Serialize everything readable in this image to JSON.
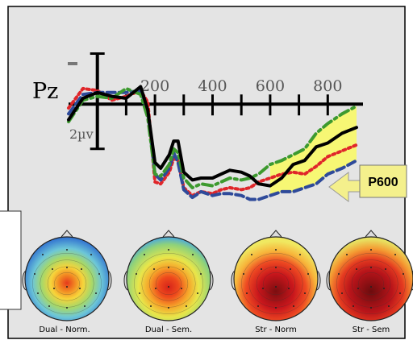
{
  "chart_data": {
    "type": "line",
    "channel_label": "Pz",
    "x_ticks": [
      200,
      400,
      600,
      800
    ],
    "xlim": [
      -100,
      900
    ],
    "ylim": [
      -5.5,
      3.2
    ],
    "scale_label": "2µv",
    "callout_label": "P600",
    "colors": {
      "black": "#000000",
      "green": "#3d9a2f",
      "red": "#e0262a",
      "blue": "#2e4a9a",
      "highlight": "#fafa60",
      "callout": "#f4f08c",
      "background": "#e4e4e4"
    },
    "series": [
      {
        "color": "black",
        "dash": "solid",
        "x": [
          -100,
          -50,
          0,
          50,
          100,
          150,
          175,
          200,
          220,
          250,
          265,
          280,
          300,
          330,
          360,
          400,
          430,
          460,
          500,
          530,
          560,
          600,
          640,
          680,
          720,
          760,
          800,
          850,
          900
        ],
        "y": [
          -0.8,
          0.3,
          0.6,
          0.4,
          0.3,
          0.9,
          -0.3,
          -3.0,
          -3.3,
          -2.6,
          -1.9,
          -1.9,
          -3.5,
          -3.9,
          -3.8,
          -3.8,
          -3.6,
          -3.4,
          -3.5,
          -3.7,
          -4.1,
          -4.2,
          -3.8,
          -3.1,
          -2.9,
          -2.2,
          -2.0,
          -1.5,
          -1.2
        ]
      },
      {
        "color": "green",
        "dash": "dash-dot",
        "x": [
          -100,
          -50,
          0,
          50,
          100,
          150,
          175,
          200,
          220,
          250,
          265,
          280,
          300,
          330,
          360,
          400,
          430,
          460,
          500,
          530,
          560,
          600,
          640,
          680,
          720,
          760,
          800,
          850,
          900
        ],
        "y": [
          -0.9,
          0.2,
          0.4,
          0.3,
          0.8,
          0.5,
          -0.7,
          -3.6,
          -3.7,
          -3.1,
          -2.3,
          -2.5,
          -3.8,
          -4.3,
          -4.1,
          -4.2,
          -4.0,
          -3.8,
          -3.9,
          -3.8,
          -3.6,
          -3.1,
          -2.9,
          -2.6,
          -2.3,
          -1.5,
          -1.0,
          -0.5,
          -0.1
        ]
      },
      {
        "color": "red",
        "dash": "dotted",
        "x": [
          -100,
          -50,
          0,
          50,
          100,
          150,
          175,
          200,
          220,
          250,
          265,
          280,
          300,
          330,
          360,
          400,
          430,
          460,
          500,
          530,
          560,
          600,
          640,
          680,
          720,
          760,
          800,
          850,
          900
        ],
        "y": [
          -0.2,
          0.8,
          0.7,
          0.2,
          0.4,
          0.7,
          0.1,
          -4.0,
          -4.1,
          -3.5,
          -2.8,
          -2.9,
          -4.3,
          -4.7,
          -4.5,
          -4.6,
          -4.4,
          -4.3,
          -4.4,
          -4.3,
          -4.0,
          -3.8,
          -3.6,
          -3.5,
          -3.6,
          -3.2,
          -2.7,
          -2.4,
          -2.1
        ]
      },
      {
        "color": "blue",
        "dash": "dashed",
        "x": [
          -100,
          -50,
          0,
          50,
          100,
          150,
          175,
          200,
          220,
          250,
          265,
          280,
          300,
          330,
          360,
          400,
          430,
          460,
          500,
          530,
          560,
          600,
          640,
          680,
          720,
          760,
          800,
          850,
          900
        ],
        "y": [
          -0.5,
          0.5,
          0.6,
          0.6,
          0.6,
          0.7,
          -0.4,
          -3.6,
          -3.9,
          -3.3,
          -2.5,
          -3.0,
          -4.4,
          -4.8,
          -4.5,
          -4.7,
          -4.6,
          -4.6,
          -4.7,
          -4.9,
          -4.9,
          -4.7,
          -4.5,
          -4.5,
          -4.3,
          -4.1,
          -3.6,
          -3.3,
          -2.9
        ]
      }
    ],
    "highlight_window": [
      590,
      900
    ],
    "topomaps": [
      {
        "label": "Dual - Norm.",
        "pattern": "central-focus",
        "intensity": 0.55
      },
      {
        "label": "Dual - Sem.",
        "pattern": "central-focus",
        "intensity": 0.75
      },
      {
        "label": "Str - Norm",
        "pattern": "broad-central-posterior",
        "intensity": 0.95
      },
      {
        "label": "Str - Sem",
        "pattern": "broad-central-posterior",
        "intensity": 1.0
      }
    ]
  }
}
